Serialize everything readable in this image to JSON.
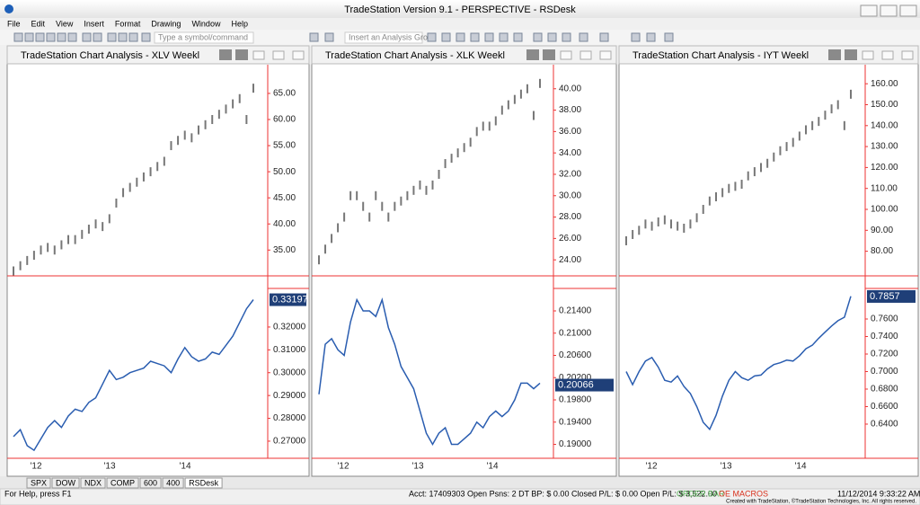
{
  "window": {
    "title": "TradeStation Version 9.1 - PERSPECTIVE - RSDesk"
  },
  "menu": [
    "File",
    "Edit",
    "View",
    "Insert",
    "Format",
    "Drawing",
    "Window",
    "Help"
  ],
  "toolbar": {
    "symbol_box": "Type a symbol/command",
    "analysis_box": "Insert an Analysis Gro"
  },
  "panes": [
    {
      "title": "TradeStation Chart Analysis - XLV Weekl",
      "x_labels": [
        "'12",
        "'13",
        "'14"
      ],
      "price": {
        "ylim": [
          30.4,
          70.5
        ],
        "yticks": [
          {
            "value": 65,
            "label": "65.00"
          },
          {
            "value": 60,
            "label": "60.00"
          },
          {
            "value": 55,
            "label": "55.00"
          },
          {
            "value": 50,
            "label": "50.00"
          },
          {
            "value": 45,
            "label": "45.00"
          },
          {
            "value": 40,
            "label": "40.00"
          },
          {
            "value": 35,
            "label": "35.00"
          }
        ],
        "values": [
          31,
          32,
          33,
          34,
          35,
          35.5,
          35,
          36,
          37,
          37,
          38,
          39,
          40,
          39.5,
          41,
          44,
          46,
          47,
          48,
          49,
          50,
          51,
          52,
          55,
          56,
          57,
          56.5,
          58,
          59,
          60,
          61,
          62,
          63,
          64,
          60,
          66
        ]
      },
      "indicator": {
        "ylim": [
          0.2625,
          0.3373
        ],
        "yticks": [
          {
            "value": 0.32,
            "label": "0.32000"
          },
          {
            "value": 0.31,
            "label": "0.31000"
          },
          {
            "value": 0.3,
            "label": "0.30000"
          },
          {
            "value": 0.29,
            "label": "0.29000"
          },
          {
            "value": 0.28,
            "label": "0.28000"
          },
          {
            "value": 0.27,
            "label": "0.27000"
          }
        ],
        "values": [
          0.272,
          0.275,
          0.268,
          0.266,
          0.271,
          0.276,
          0.279,
          0.276,
          0.281,
          0.284,
          0.283,
          0.287,
          0.289,
          0.295,
          0.301,
          0.297,
          0.298,
          0.3,
          0.301,
          0.302,
          0.305,
          0.304,
          0.303,
          0.3,
          0.306,
          0.311,
          0.307,
          0.305,
          0.306,
          0.309,
          0.308,
          0.312,
          0.316,
          0.322,
          0.328,
          0.332
        ],
        "last": 0.33197
      }
    },
    {
      "title": "TradeStation Chart Analysis - XLK Weekl",
      "x_labels": [
        "'12",
        "'13",
        "'14"
      ],
      "price": {
        "ylim": [
          22.67,
          42.25
        ],
        "yticks": [
          {
            "value": 40,
            "label": "40.00"
          },
          {
            "value": 38,
            "label": "38.00"
          },
          {
            "value": 36,
            "label": "36.00"
          },
          {
            "value": 34,
            "label": "34.00"
          },
          {
            "value": 32,
            "label": "32.00"
          },
          {
            "value": 30,
            "label": "30.00"
          },
          {
            "value": 28,
            "label": "28.00"
          },
          {
            "value": 26,
            "label": "26.00"
          },
          {
            "value": 24,
            "label": "24.00"
          }
        ],
        "values": [
          24,
          25,
          26,
          27,
          28,
          30,
          30,
          29,
          28,
          30,
          29,
          28,
          29,
          29.5,
          30,
          30.5,
          31,
          30.5,
          31,
          32,
          33,
          33.5,
          34,
          34.5,
          35,
          36,
          36.5,
          36.5,
          37,
          38,
          38.5,
          39,
          39.5,
          40,
          37.5,
          40.5
        ]
      },
      "indicator": {
        "ylim": [
          0.1875,
          0.2182
        ],
        "yticks": [
          {
            "value": 0.214,
            "label": "0.21400"
          },
          {
            "value": 0.21,
            "label": "0.21000"
          },
          {
            "value": 0.206,
            "label": "0.20600"
          },
          {
            "value": 0.202,
            "label": "0.20200"
          },
          {
            "value": 0.198,
            "label": "0.19800"
          },
          {
            "value": 0.194,
            "label": "0.19400"
          },
          {
            "value": 0.19,
            "label": "0.19000"
          }
        ],
        "values": [
          0.199,
          0.208,
          0.209,
          0.207,
          0.206,
          0.212,
          0.216,
          0.214,
          0.214,
          0.213,
          0.216,
          0.211,
          0.208,
          0.204,
          0.202,
          0.2,
          0.196,
          0.192,
          0.19,
          0.192,
          0.193,
          0.19,
          0.19,
          0.191,
          0.192,
          0.194,
          0.193,
          0.195,
          0.196,
          0.195,
          0.196,
          0.198,
          0.201,
          0.201,
          0.2,
          0.201
        ],
        "last": 0.20066
      }
    },
    {
      "title": "TradeStation Chart Analysis - IYT Weekl",
      "x_labels": [
        "'12",
        "'13",
        "'14"
      ],
      "price": {
        "ylim": [
          69.1,
          169.1
        ],
        "yticks": [
          {
            "value": 160,
            "label": "160.00"
          },
          {
            "value": 150,
            "label": "150.00"
          },
          {
            "value": 140,
            "label": "140.00"
          },
          {
            "value": 130,
            "label": "130.00"
          },
          {
            "value": 120,
            "label": "120.00"
          },
          {
            "value": 110,
            "label": "110.00"
          },
          {
            "value": 100,
            "label": "100.00"
          },
          {
            "value": 90,
            "label": "90.00"
          },
          {
            "value": 80,
            "label": "80.00"
          }
        ],
        "values": [
          85,
          88,
          90,
          93,
          92,
          94,
          95,
          93,
          92,
          91,
          93,
          96,
          100,
          104,
          106,
          108,
          110,
          111,
          112,
          116,
          118,
          120,
          122,
          125,
          128,
          130,
          132,
          135,
          138,
          140,
          142,
          145,
          148,
          150,
          140,
          155
        ]
      },
      "indicator": {
        "ylim": [
          0.601,
          0.7959
        ],
        "yticks": [
          {
            "value": 0.76,
            "label": "0.7600"
          },
          {
            "value": 0.74,
            "label": "0.7400"
          },
          {
            "value": 0.72,
            "label": "0.7200"
          },
          {
            "value": 0.7,
            "label": "0.7000"
          },
          {
            "value": 0.68,
            "label": "0.6800"
          },
          {
            "value": 0.66,
            "label": "0.6600"
          },
          {
            "value": 0.64,
            "label": "0.6400"
          }
        ],
        "values": [
          0.7,
          0.685,
          0.7,
          0.712,
          0.716,
          0.705,
          0.69,
          0.688,
          0.695,
          0.683,
          0.675,
          0.66,
          0.642,
          0.634,
          0.65,
          0.672,
          0.69,
          0.7,
          0.693,
          0.69,
          0.695,
          0.696,
          0.703,
          0.708,
          0.71,
          0.713,
          0.712,
          0.718,
          0.726,
          0.73,
          0.738,
          0.745,
          0.752,
          0.758,
          0.762,
          0.786
        ],
        "last": 0.7857
      }
    }
  ],
  "tabs": [
    "SPX",
    "DOW",
    "NDX",
    "COMP",
    "600",
    "400",
    "RSDesk"
  ],
  "status": {
    "help": "For Help, press F1",
    "account": "Acct: 17409303  Open Psns: 2  DT BP: $ 0.00  Closed P/L: $ 0.00  Open P/L: $ 3,522.00",
    "order_bar": "ORDER BAR",
    "oe_macros": "OE MACROS",
    "datetime": "11/12/2014  9:33:22 AM",
    "credit": "Created with TradeStation, ©TradeStation Technologies, Inc. All rights reserved."
  }
}
